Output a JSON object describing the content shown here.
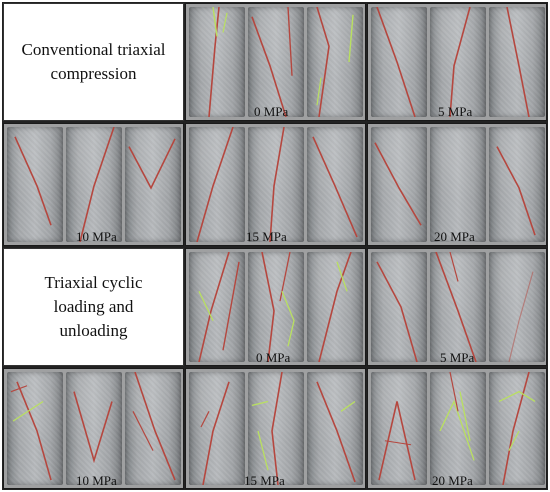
{
  "rows": [
    {
      "kind": "conventional",
      "label": "Conventional triaxial compression",
      "groups": [
        {
          "pressure": "0 MPa"
        },
        {
          "pressure": "5 MPa"
        }
      ]
    },
    {
      "kind": "conventional",
      "label": "",
      "groups": [
        {
          "pressure": "10 MPa"
        },
        {
          "pressure": "15 MPa"
        },
        {
          "pressure": "20 MPa"
        }
      ]
    },
    {
      "kind": "cyclic",
      "label": "Triaxial cyclic loading and unloading",
      "groups": [
        {
          "pressure": "0 MPa"
        },
        {
          "pressure": "5 MPa"
        }
      ]
    },
    {
      "kind": "cyclic",
      "label": "",
      "groups": [
        {
          "pressure": "10 MPa"
        },
        {
          "pressure": "15 MPa"
        },
        {
          "pressure": "20 MPa"
        }
      ]
    }
  ],
  "colors": {
    "main_crack": "#b5473f",
    "secondary_crack": "#b9e060"
  }
}
